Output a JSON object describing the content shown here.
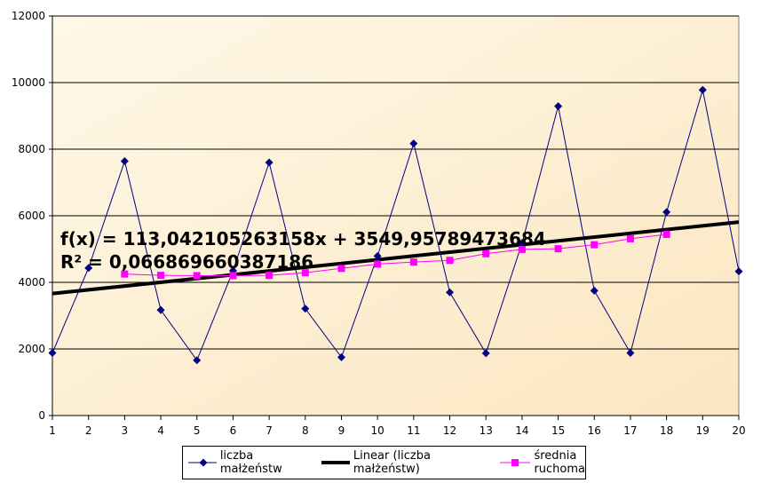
{
  "chart_data": {
    "type": "line",
    "x": [
      1,
      2,
      3,
      4,
      5,
      6,
      7,
      8,
      9,
      10,
      11,
      12,
      13,
      14,
      15,
      16,
      17,
      18,
      19,
      20
    ],
    "series": [
      {
        "name": "liczba małżeństw",
        "color": "#000080",
        "marker": "diamond",
        "values": [
          1880,
          4430,
          7640,
          3170,
          1660,
          4350,
          7600,
          3210,
          1750,
          4790,
          8170,
          3700,
          1870,
          5180,
          9290,
          3750,
          1880,
          6110,
          9780,
          4330
        ]
      },
      {
        "name": "Linear (liczba małżeństw)",
        "color": "#000000",
        "kind": "trendline",
        "slope": 113.042105263158,
        "intercept": 3549.95789473684
      },
      {
        "name": "średnia ruchoma",
        "color": "#ff00ff",
        "marker": "square",
        "values": [
          null,
          null,
          4250,
          4210,
          4200,
          4200,
          4210,
          4290,
          4420,
          4550,
          4610,
          4660,
          4860,
          4990,
          5010,
          5130,
          5310,
          5440,
          null,
          null
        ]
      }
    ],
    "equation": "f(x) = 113,042105263158x + 3549,95789473684",
    "r_squared": "R² = 0,0668696603871​86",
    "ylim": [
      0,
      12000
    ],
    "yticks": [
      "0",
      "2000",
      "4000",
      "6000",
      "8000",
      "10000",
      "12000"
    ],
    "xlim": [
      1,
      20
    ],
    "grid": true,
    "legend_position": "bottom",
    "plot_background": "#fdf0d8"
  },
  "legend": {
    "item1": "liczba małżeństw",
    "item2": "Linear (liczba małżeństw)",
    "item3_line1": "średnia",
    "item3_line2": "ruchoma"
  }
}
